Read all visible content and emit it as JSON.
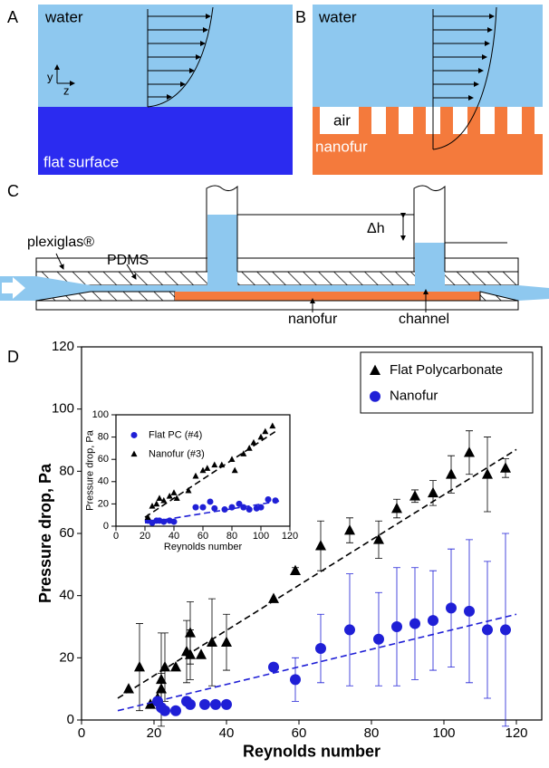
{
  "panels": {
    "a": {
      "label": "A",
      "water": "water",
      "surface": "flat surface",
      "axis_y": "y",
      "axis_z": "z"
    },
    "b": {
      "label": "B",
      "water": "water",
      "air": "air",
      "surface": "nanofur"
    },
    "c": {
      "label": "C",
      "plexiglas": "plexiglas®",
      "pdms": "PDMS",
      "dh": "Δh",
      "nanofur": "nanofur",
      "channel": "channel"
    }
  },
  "chart_data": [
    {
      "type": "scatter",
      "panel_label": "D",
      "x_label": "Reynolds number",
      "y_label": "Pressure drop, Pa",
      "xlim": [
        0,
        127
      ],
      "ylim": [
        0,
        120
      ],
      "xticks": [
        0,
        20,
        40,
        60,
        80,
        100,
        120
      ],
      "yticks": [
        0,
        20,
        40,
        60,
        80,
        100,
        120
      ],
      "legend": "upper right",
      "series": [
        {
          "name": "Flat Polycarbonate",
          "color": "#000000",
          "marker": "triangle",
          "x": [
            13,
            16,
            19,
            21,
            22,
            22,
            23,
            26,
            29,
            30,
            30,
            33,
            36,
            40,
            53,
            59,
            66,
            74,
            82,
            87,
            92,
            97,
            102,
            107,
            112,
            117
          ],
          "values": [
            10,
            17,
            5,
            7,
            13,
            10,
            17,
            17,
            22,
            21,
            28,
            21,
            25,
            25,
            39,
            48,
            56,
            61,
            58,
            68,
            72,
            73,
            79,
            86,
            79,
            81
          ],
          "errors": [
            null,
            14,
            null,
            null,
            15,
            5,
            11,
            null,
            10,
            8,
            10,
            null,
            14,
            9,
            null,
            1,
            8,
            4,
            6,
            3,
            2,
            4,
            6,
            7,
            12,
            3
          ],
          "fit_x": [
            10,
            120
          ],
          "fit_values": [
            7,
            87
          ]
        },
        {
          "name": "Nanofur",
          "color": "#1f1fd6",
          "marker": "circle",
          "x": [
            21,
            22,
            23,
            26,
            29,
            30,
            34,
            37,
            40,
            53,
            59,
            66,
            74,
            82,
            87,
            92,
            97,
            102,
            107,
            112,
            117
          ],
          "values": [
            6,
            4,
            3,
            3,
            6,
            5,
            5,
            5,
            5,
            17,
            13,
            23,
            29,
            26,
            30,
            31,
            32,
            36,
            35,
            29,
            29
          ],
          "errors": [
            null,
            null,
            null,
            null,
            null,
            null,
            null,
            null,
            null,
            null,
            7,
            11,
            18,
            15,
            19,
            18,
            16,
            19,
            23,
            22,
            31
          ],
          "fit_x": [
            10,
            120
          ],
          "fit_values": [
            3,
            34
          ]
        }
      ]
    },
    {
      "type": "scatter",
      "x_label": "Reynolds number",
      "y_label": "Pressure drop, Pa",
      "xlim": [
        0,
        120
      ],
      "ylim": [
        0,
        100
      ],
      "xticks": [
        0,
        20,
        40,
        60,
        80,
        100,
        120
      ],
      "yticks": [
        0,
        20,
        40,
        60,
        80,
        100
      ],
      "legend": "upper left",
      "series": [
        {
          "name": "Flat PC (#4)",
          "color": "#1f1fd6",
          "marker": "circle",
          "x": [
            22,
            25,
            28,
            30,
            33,
            37,
            40,
            55,
            60,
            65,
            68,
            75,
            80,
            85,
            88,
            92,
            97,
            100,
            105,
            110
          ],
          "values": [
            5,
            3,
            5,
            5,
            4,
            5,
            4,
            17,
            17,
            22,
            16,
            15,
            17,
            20,
            17,
            15,
            16,
            17,
            24,
            23
          ],
          "fit_x": [
            20,
            115
          ],
          "fit_values": [
            3,
            23
          ]
        },
        {
          "name": "Nanofur (#3)",
          "color": "#000000",
          "marker": "triangle",
          "x": [
            22,
            25,
            28,
            30,
            33,
            37,
            40,
            42,
            50,
            55,
            60,
            63,
            68,
            73,
            80,
            82,
            88,
            92,
            95,
            100,
            103,
            108
          ],
          "values": [
            8,
            18,
            20,
            25,
            23,
            27,
            30,
            25,
            32,
            45,
            50,
            52,
            55,
            55,
            60,
            50,
            65,
            70,
            75,
            80,
            85,
            90
          ],
          "fit_x": [
            20,
            110
          ],
          "fit_values": [
            8,
            85
          ]
        }
      ]
    }
  ]
}
